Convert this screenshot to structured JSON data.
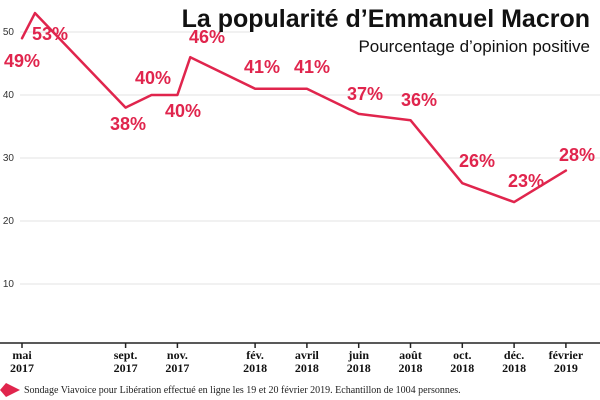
{
  "chart_data": {
    "type": "line",
    "title": "La popularité d’Emmanuel Macron",
    "subtitle": "Pourcentage d’opinion positive",
    "xlabel": "",
    "ylabel": "",
    "ylim": [
      0,
      55
    ],
    "yticks": [
      "10",
      "20",
      "30",
      "40",
      "50"
    ],
    "grid": true,
    "color": "#e0254d",
    "points": [
      {
        "t": 0.0,
        "value": 49,
        "label": "49%"
      },
      {
        "t": 0.5,
        "value": 53,
        "label": "53%"
      },
      {
        "t": 4.0,
        "value": 38,
        "label": "38%"
      },
      {
        "t": 5.0,
        "value": 40,
        "label": "40%"
      },
      {
        "t": 6.0,
        "value": 40,
        "label": "40%"
      },
      {
        "t": 6.5,
        "value": 46,
        "label": "46%"
      },
      {
        "t": 9.0,
        "value": 41,
        "label": "41%"
      },
      {
        "t": 11.0,
        "value": 41,
        "label": "41%"
      },
      {
        "t": 13.0,
        "value": 37,
        "label": "37%"
      },
      {
        "t": 15.0,
        "value": 36,
        "label": "36%"
      },
      {
        "t": 17.0,
        "value": 26,
        "label": "26%"
      },
      {
        "t": 19.0,
        "value": 23,
        "label": "23%"
      },
      {
        "t": 21.0,
        "value": 28,
        "label": "28%"
      }
    ],
    "xticks": [
      {
        "t": 0,
        "line1": "mai",
        "line2": "2017"
      },
      {
        "t": 4,
        "line1": "sept.",
        "line2": "2017"
      },
      {
        "t": 6,
        "line1": "nov.",
        "line2": "2017"
      },
      {
        "t": 9,
        "line1": "fév.",
        "line2": "2018"
      },
      {
        "t": 11,
        "line1": "avril",
        "line2": "2018"
      },
      {
        "t": 13,
        "line1": "juin",
        "line2": "2018"
      },
      {
        "t": 15,
        "line1": "août",
        "line2": "2018"
      },
      {
        "t": 17,
        "line1": "oct.",
        "line2": "2018"
      },
      {
        "t": 19,
        "line1": "déc.",
        "line2": "2018"
      },
      {
        "t": 21,
        "line1": "février",
        "line2": "2019"
      }
    ]
  },
  "footnote": "Sondage Viavoice pour Libération effectué en ligne les 19 et 20 février 2019. Echantillon de 1004 personnes."
}
